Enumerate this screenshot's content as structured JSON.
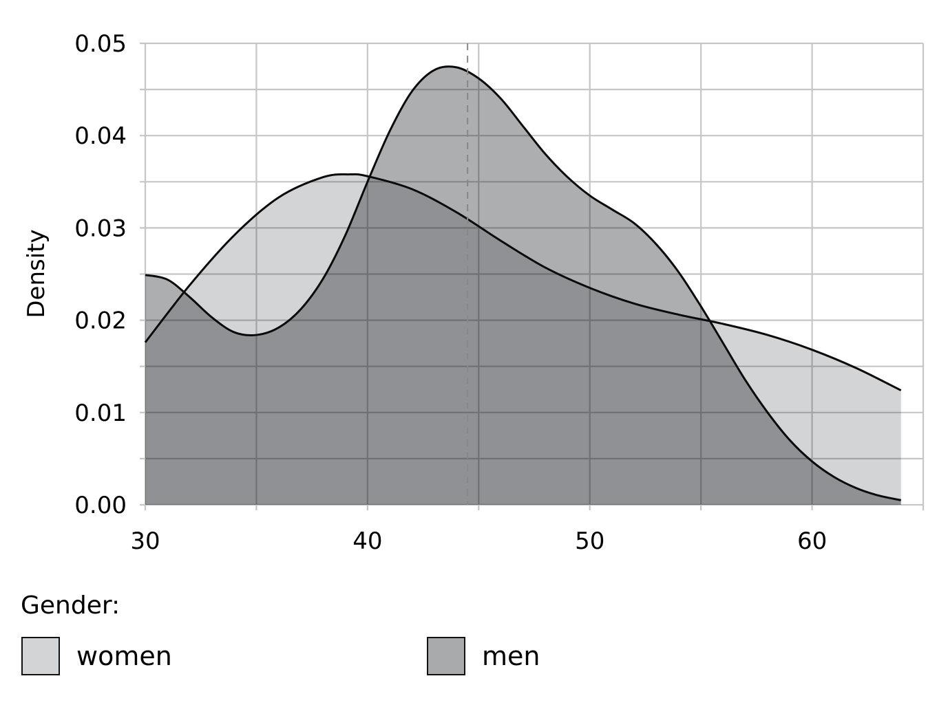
{
  "chart_data": {
    "type": "area",
    "title": "",
    "xlabel": "",
    "ylabel": "Density",
    "xlim": [
      30,
      65
    ],
    "ylim": [
      0,
      0.05
    ],
    "x_ticks": [
      "30",
      "40",
      "50",
      "60"
    ],
    "y_ticks": [
      "0.00",
      "0.01",
      "0.02",
      "0.03",
      "0.04",
      "0.05"
    ],
    "grid": true,
    "reference_line_x": 44.5,
    "legend": {
      "title": "Gender:",
      "placement": "bottom"
    },
    "series": [
      {
        "name": "women",
        "color": "#d3d4d6",
        "x": [
          30,
          32,
          34,
          36,
          38,
          39.2,
          40,
          42,
          44,
          46,
          48,
          50,
          52,
          54,
          56,
          58,
          60,
          62,
          64
        ],
        "y": [
          0.0176,
          0.0238,
          0.0292,
          0.0333,
          0.0355,
          0.0358,
          0.0356,
          0.0342,
          0.0317,
          0.0286,
          0.0257,
          0.0235,
          0.0218,
          0.0206,
          0.0196,
          0.0184,
          0.0168,
          0.0148,
          0.0124
        ]
      },
      {
        "name": "men",
        "color": "#a9aaac",
        "x": [
          30,
          31,
          32,
          33,
          34,
          35,
          36,
          37,
          38,
          39,
          40,
          41,
          42,
          43,
          44,
          45,
          46,
          47,
          48,
          49,
          50,
          51,
          52,
          53,
          54,
          55,
          56,
          57,
          58,
          59,
          60,
          61,
          62,
          63,
          64
        ],
        "y": [
          0.0249,
          0.0244,
          0.0225,
          0.0203,
          0.0187,
          0.0184,
          0.0192,
          0.0212,
          0.0245,
          0.0292,
          0.035,
          0.0405,
          0.0448,
          0.0471,
          0.0474,
          0.0462,
          0.044,
          0.041,
          0.038,
          0.0355,
          0.0335,
          0.032,
          0.0305,
          0.0282,
          0.0252,
          0.0215,
          0.0175,
          0.0135,
          0.01,
          0.007,
          0.0047,
          0.003,
          0.0018,
          0.001,
          0.0005
        ]
      }
    ]
  }
}
